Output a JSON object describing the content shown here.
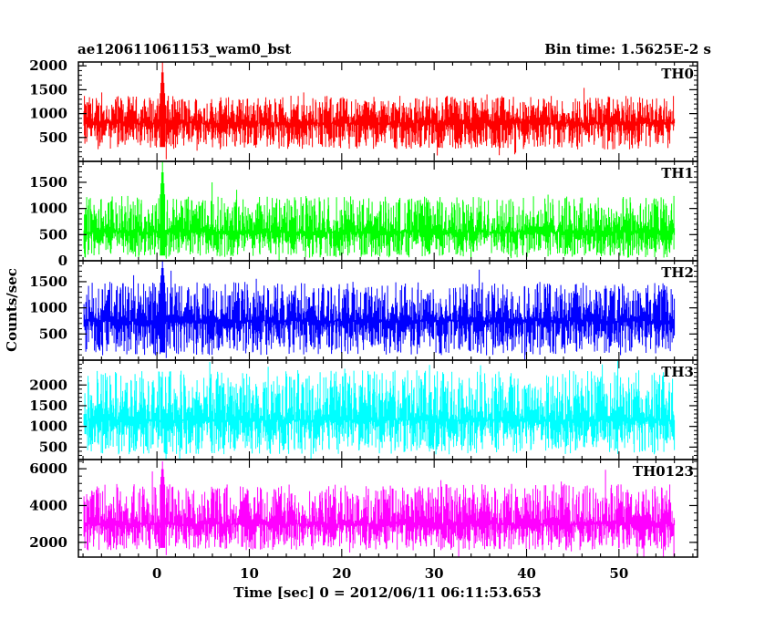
{
  "header": {
    "title": "ae120611061153_wam0_bst",
    "bin_time": "Bin time: 1.5625E-2 s"
  },
  "chart_data": {
    "type": "line",
    "title": "ae120611061153_wam0_bst",
    "xlabel": "Time [sec] 0 = 2012/06/11 06:11:53.653",
    "ylabel": "Counts/sec",
    "xlim": [
      -8.5,
      58.5
    ],
    "x_range_data": [
      -7.9,
      56
    ],
    "x_ticks": [
      0,
      10,
      20,
      30,
      40,
      50
    ],
    "x_tick_labels": [
      "0",
      "10",
      "20",
      "30",
      "40",
      "50"
    ],
    "grid": false,
    "panels": [
      {
        "name": "TH0",
        "color": "#ff0000",
        "ylim": [
          0,
          2080
        ],
        "ticks": [
          500,
          1000,
          1500,
          2000
        ],
        "tick_labels": [
          "500",
          "1000",
          "1500",
          "2000"
        ],
        "typical_min": 300,
        "typical_max": 1300,
        "mean": 800,
        "burst_peak": 2080,
        "burst_time": 0.6
      },
      {
        "name": "TH1",
        "color": "#00ff00",
        "ylim": [
          0,
          1900
        ],
        "ticks": [
          0,
          500,
          1000,
          1500
        ],
        "tick_labels": [
          "0",
          "500",
          "1000",
          "1500"
        ],
        "typical_min": 100,
        "typical_max": 1150,
        "mean": 550,
        "burst_peak": 1900,
        "burst_time": 0.6
      },
      {
        "name": "TH2",
        "color": "#0000ff",
        "ylim": [
          0,
          1900
        ],
        "ticks": [
          500,
          1000,
          1500
        ],
        "tick_labels": [
          "500",
          "1000",
          "1500"
        ],
        "typical_min": 150,
        "typical_max": 1400,
        "mean": 750,
        "burst_peak": 1900,
        "burst_time": 0.6
      },
      {
        "name": "TH3",
        "color": "#00ffff",
        "ylim": [
          200,
          2600
        ],
        "ticks": [
          500,
          1000,
          1500,
          2000
        ],
        "tick_labels": [
          "500",
          "1000",
          "1500",
          "2000"
        ],
        "typical_min": 400,
        "typical_max": 2200,
        "mean": 1150,
        "burst_peak": null,
        "burst_time": null
      },
      {
        "name": "TH0123",
        "color": "#ff00ff",
        "ylim": [
          1200,
          6500
        ],
        "ticks": [
          2000,
          4000,
          6000
        ],
        "tick_labels": [
          "2000",
          "4000",
          "6000"
        ],
        "typical_min": 1700,
        "typical_max": 4900,
        "mean": 3000,
        "burst_peak": 6400,
        "burst_time": 0.6
      }
    ]
  }
}
